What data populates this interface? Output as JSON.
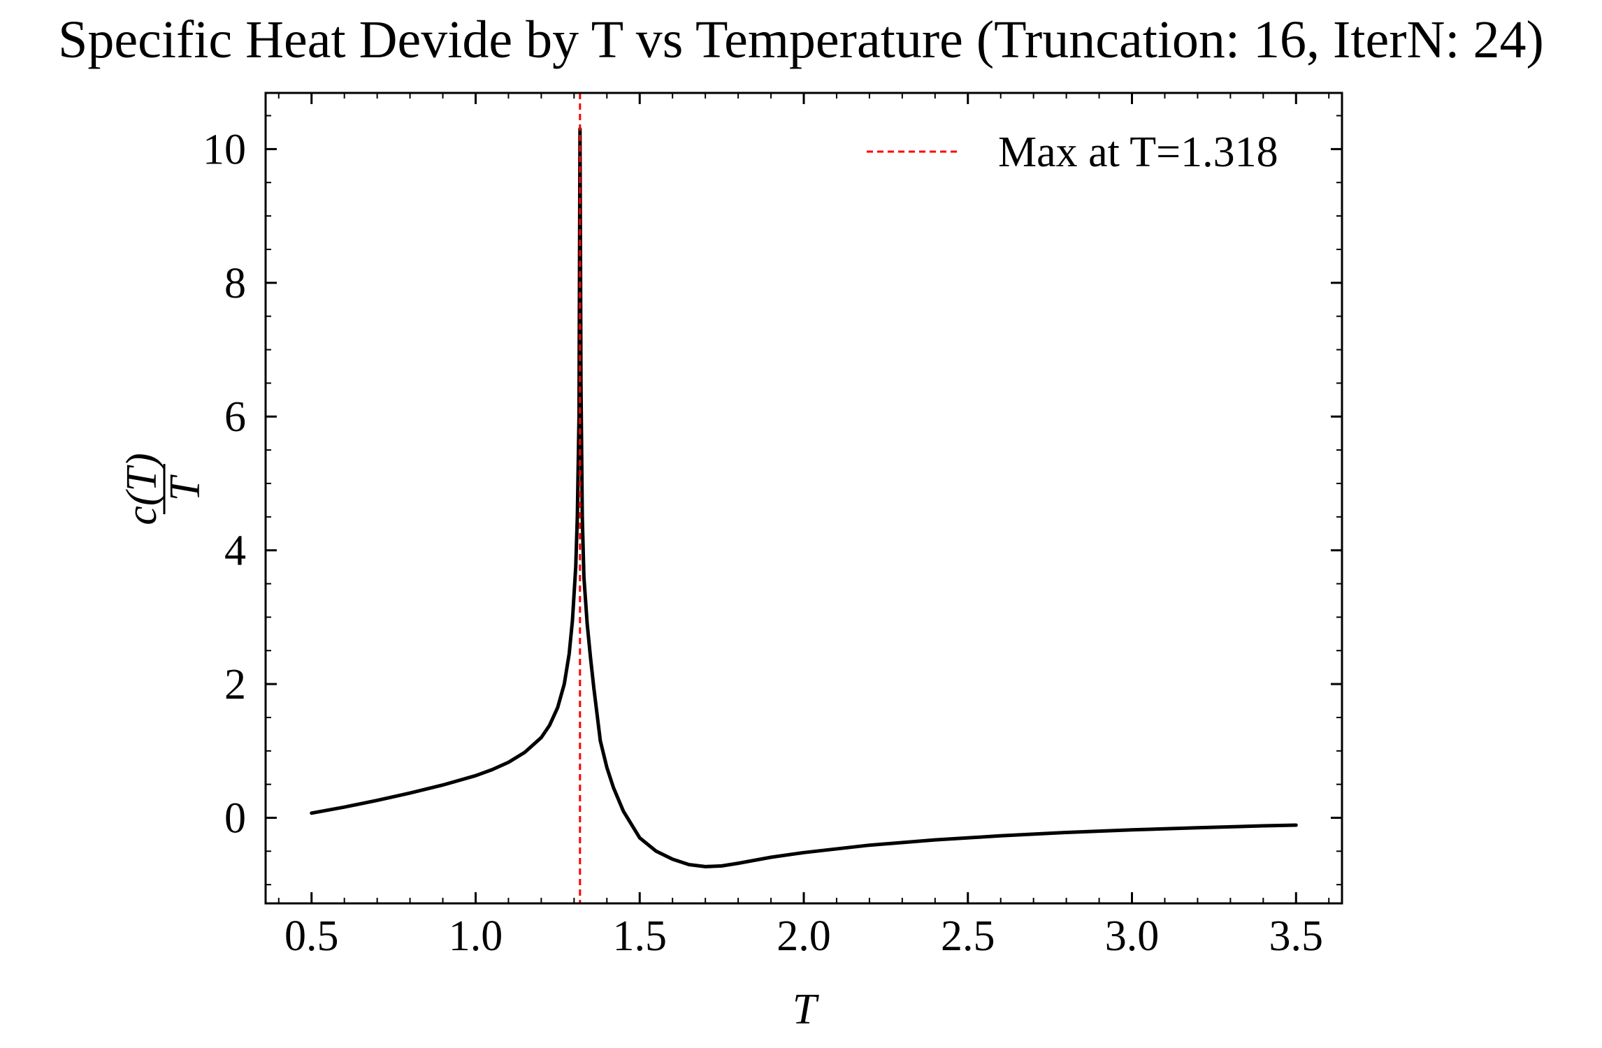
{
  "chart_data": {
    "type": "line",
    "title": "Specific Heat Devide by T vs Temperature (Truncation: 16, IterN: 24)",
    "xlabel": "T",
    "ylabel": {
      "numerator": "c(T)",
      "denominator": "T"
    },
    "xlim": [
      0.36,
      3.64
    ],
    "ylim": [
      -1.28,
      10.84
    ],
    "x_ticks": [
      0.5,
      1.0,
      1.5,
      2.0,
      2.5,
      3.0,
      3.5
    ],
    "x_tick_labels": [
      "0.5",
      "1.0",
      "1.5",
      "2.0",
      "2.5",
      "3.0",
      "3.5"
    ],
    "y_ticks": [
      0,
      2,
      4,
      6,
      8,
      10
    ],
    "y_tick_labels": [
      "0",
      "2",
      "4",
      "6",
      "8",
      "10"
    ],
    "x_minor_step": 0.1,
    "y_minor_step": 0.5,
    "grid": false,
    "legend_position": "top-right",
    "series": [
      {
        "color": "#000000",
        "x": [
          0.5,
          0.6,
          0.7,
          0.8,
          0.9,
          1.0,
          1.05,
          1.1,
          1.15,
          1.2,
          1.225,
          1.25,
          1.27,
          1.285,
          1.295,
          1.305,
          1.31,
          1.315,
          1.318,
          1.321,
          1.325,
          1.33,
          1.34,
          1.35,
          1.36,
          1.37,
          1.38,
          1.4,
          1.42,
          1.45,
          1.5,
          1.55,
          1.6,
          1.65,
          1.7,
          1.75,
          1.8,
          1.9,
          2.0,
          2.2,
          2.4,
          2.6,
          2.8,
          3.0,
          3.2,
          3.4,
          3.5
        ],
        "y": [
          0.07,
          0.16,
          0.26,
          0.37,
          0.49,
          0.63,
          0.72,
          0.83,
          0.98,
          1.2,
          1.38,
          1.65,
          2.0,
          2.45,
          2.95,
          3.75,
          4.5,
          6.0,
          10.3,
          6.5,
          4.5,
          3.6,
          2.9,
          2.4,
          1.95,
          1.55,
          1.15,
          0.75,
          0.45,
          0.1,
          -0.3,
          -0.5,
          -0.62,
          -0.7,
          -0.73,
          -0.72,
          -0.68,
          -0.59,
          -0.52,
          -0.41,
          -0.33,
          -0.27,
          -0.22,
          -0.18,
          -0.15,
          -0.12,
          -0.11
        ]
      }
    ],
    "vertical_line": {
      "x": 1.318,
      "color": "#ff0000",
      "label": "Max at T=1.318"
    }
  }
}
